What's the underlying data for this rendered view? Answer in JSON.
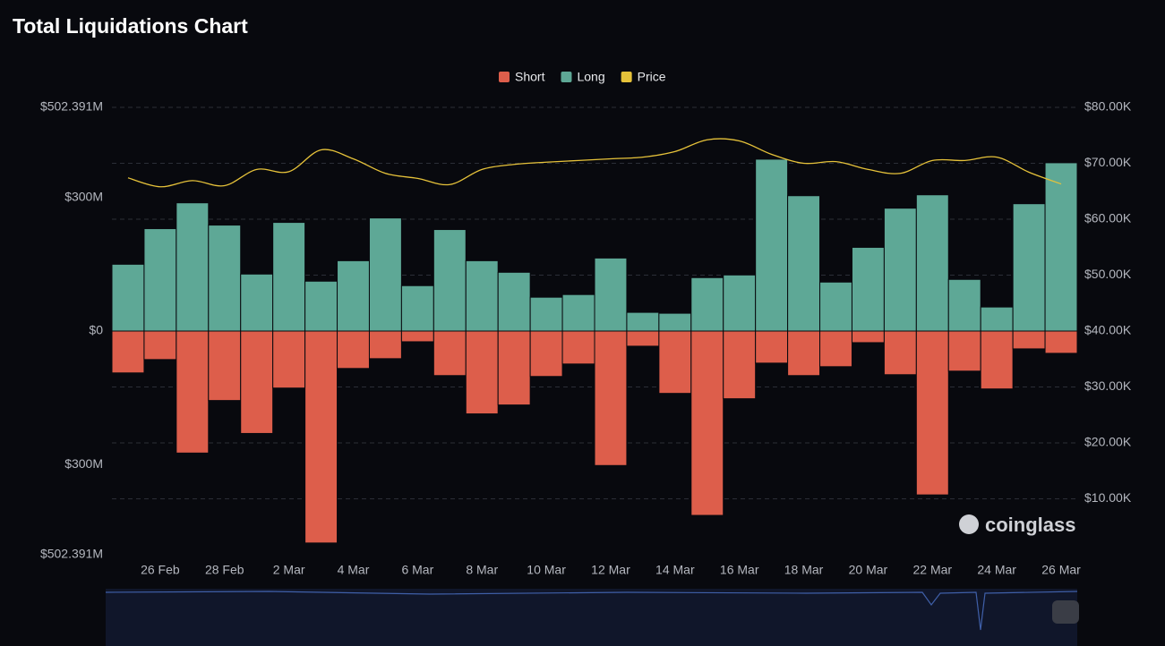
{
  "chart_data": {
    "type": "bar",
    "title": "Total Liquidations Chart",
    "categories": [
      null,
      "26 Feb",
      null,
      "28 Feb",
      null,
      "2 Mar",
      null,
      "4 Mar",
      null,
      "6 Mar",
      null,
      "8 Mar",
      null,
      "10 Mar",
      null,
      "12 Mar",
      null,
      "14 Mar",
      null,
      "16 Mar",
      null,
      "18 Mar",
      null,
      "20 Mar",
      null,
      "22 Mar",
      null,
      "24 Mar",
      null,
      "26 Mar"
    ],
    "series": [
      {
        "name": "Short",
        "color": "#dd5e4b",
        "type": "bar",
        "values": [
          -94,
          -64,
          -274,
          -156,
          -230,
          -128,
          -476,
          -84,
          -62,
          -24,
          -100,
          -186,
          -166,
          -102,
          -74,
          -302,
          -34,
          -140,
          -414,
          -152,
          -72,
          -100,
          -80,
          -26,
          -98,
          -368,
          -90,
          -130,
          -40,
          -50
        ]
      },
      {
        "name": "Long",
        "color": "#5ea896",
        "type": "bar",
        "values": [
          150,
          230,
          288,
          238,
          128,
          244,
          112,
          158,
          254,
          102,
          228,
          158,
          132,
          76,
          82,
          164,
          42,
          40,
          120,
          126,
          386,
          304,
          110,
          188,
          276,
          306,
          116,
          54,
          286,
          378
        ]
      },
      {
        "name": "Price",
        "color": "#e6c23a",
        "type": "line",
        "axis": "y2",
        "values": [
          67400,
          65800,
          66900,
          66000,
          68900,
          68500,
          72400,
          70800,
          68200,
          67300,
          66200,
          68900,
          69800,
          70200,
          70500,
          70800,
          71100,
          72100,
          74200,
          74000,
          71600,
          70000,
          70300,
          68900,
          68200,
          70500,
          70500,
          71100,
          68400,
          66300
        ]
      }
    ],
    "ylim": [
      -502.391,
      502.391
    ],
    "yticks": [
      {
        "value": -502.391,
        "label": "$502.391M"
      },
      {
        "value": -300,
        "label": "$300M"
      },
      {
        "value": 0,
        "label": "$0"
      },
      {
        "value": 300,
        "label": "$300M"
      },
      {
        "value": 502.391,
        "label": "$502.391M"
      }
    ],
    "y2lim": [
      0,
      80000
    ],
    "y2ticks": [
      {
        "value": 10000,
        "label": "$10.00K"
      },
      {
        "value": 20000,
        "label": "$20.00K"
      },
      {
        "value": 30000,
        "label": "$30.00K"
      },
      {
        "value": 40000,
        "label": "$40.00K"
      },
      {
        "value": 50000,
        "label": "$50.00K"
      },
      {
        "value": 60000,
        "label": "$60.00K"
      },
      {
        "value": 70000,
        "label": "$70.00K"
      },
      {
        "value": 80000,
        "label": "$80.00K"
      }
    ],
    "grid": true,
    "watermark": "coinglass"
  }
}
